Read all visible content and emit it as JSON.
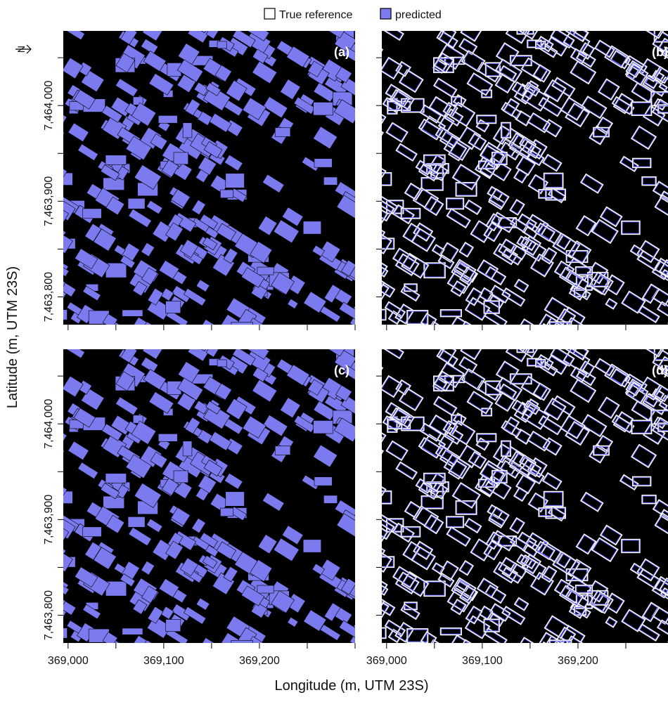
{
  "legend": {
    "items": [
      {
        "label": "True reference",
        "color": "#ffffff"
      },
      {
        "label": "predicted",
        "color": "#7b7bef"
      }
    ]
  },
  "panels": [
    {
      "label": "(a)",
      "style": "filled"
    },
    {
      "label": "(b)",
      "style": "outline"
    },
    {
      "label": "(c)",
      "style": "filled"
    },
    {
      "label": "(d)",
      "style": "outline"
    }
  ],
  "axes": {
    "xlabel": "Longitude (m, UTM 23S)",
    "ylabel": "Latitude (m, UTM 23S)",
    "xlim": [
      368995,
      369300
    ],
    "ylim": [
      7463771,
      7464078
    ],
    "xticks": [
      {
        "value": 369000,
        "label": "369,000"
      },
      {
        "value": 369100,
        "label": "369,100"
      },
      {
        "value": 369200,
        "label": "369,200"
      }
    ],
    "xminor": [
      369050,
      369150,
      369250,
      369300
    ],
    "yticks": [
      {
        "value": 7463800,
        "label": "7,463,800"
      },
      {
        "value": 7463900,
        "label": "7,463,900"
      },
      {
        "value": 7464000,
        "label": "7,464,000"
      }
    ],
    "yminor": [
      7463850,
      7463950,
      7464050
    ]
  },
  "north": "N"
}
